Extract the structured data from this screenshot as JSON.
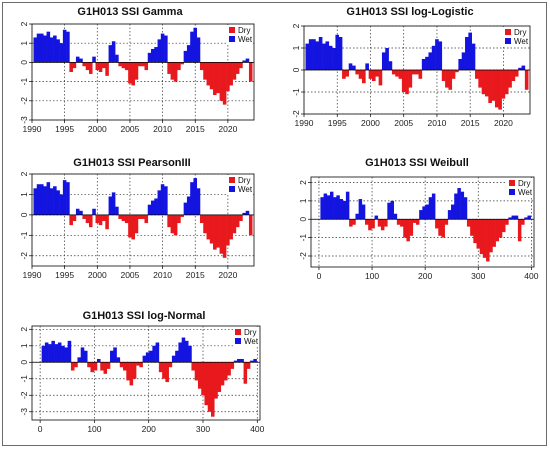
{
  "colors": {
    "dry": "#e8191c",
    "wet": "#1414e0",
    "grid": "#333333",
    "frame": "#222222"
  },
  "legend": {
    "dry": "Dry",
    "wet": "Wet",
    "placement": "top-right"
  },
  "chart_data": [
    {
      "type": "bar",
      "title": "G1H013 SSI Gamma",
      "xlabel": "",
      "ylabel": "",
      "x_kind": "year",
      "xlim": [
        1990,
        2024
      ],
      "xticks": [
        "1990",
        "1995",
        "2000",
        "2005",
        "2010",
        "2015",
        "2020"
      ],
      "ylim": [
        -3,
        2
      ],
      "yticks": [
        "-3",
        "-2",
        "-1",
        "0",
        "1",
        "2"
      ],
      "x": [
        1990.5,
        1991,
        1991.5,
        1992,
        1992.5,
        1993,
        1993.5,
        1994,
        1994.5,
        1995,
        1995.5,
        1996,
        1996.5,
        1997,
        1997.5,
        1998,
        1998.5,
        1999,
        1999.5,
        2000,
        2000.5,
        2001,
        2001.5,
        2002,
        2002.5,
        2003,
        2003.5,
        2004,
        2004.5,
        2005,
        2005.5,
        2006,
        2006.5,
        2007,
        2007.5,
        2008,
        2008.5,
        2009,
        2009.5,
        2010,
        2010.5,
        2011,
        2011.5,
        2012,
        2012.5,
        2013,
        2013.5,
        2014,
        2014.5,
        2015,
        2015.5,
        2016,
        2016.5,
        2017,
        2017.5,
        2018,
        2018.5,
        2019,
        2019.5,
        2020,
        2020.5,
        2021,
        2021.5,
        2022,
        2022.5,
        2023,
        2023.5
      ],
      "values": [
        1.3,
        1.5,
        1.5,
        1.4,
        1.6,
        1.3,
        1.4,
        1.2,
        1.0,
        1.7,
        1.6,
        -0.5,
        -0.3,
        0.3,
        0.2,
        -0.2,
        -0.4,
        -0.6,
        0.3,
        -0.4,
        -0.5,
        -0.3,
        -0.7,
        0.9,
        1.1,
        0.4,
        -0.2,
        -0.3,
        -0.4,
        -1.1,
        -1.2,
        -0.9,
        -0.2,
        -0.2,
        -0.4,
        0.5,
        0.7,
        0.8,
        1.2,
        1.5,
        1.4,
        -0.6,
        -0.9,
        -1.0,
        -0.4,
        -0.1,
        0.6,
        0.9,
        1.6,
        1.8,
        1.3,
        -0.4,
        -0.9,
        -1.2,
        -1.4,
        -1.7,
        -1.6,
        -2.0,
        -2.2,
        -1.5,
        -1.2,
        -0.9,
        -0.6,
        -0.3,
        0.1,
        0.2,
        -1.0
      ]
    },
    {
      "type": "bar",
      "title": "G1H013 SSI log-Logistic",
      "xlabel": "",
      "ylabel": "",
      "x_kind": "year",
      "xlim": [
        1990,
        2024
      ],
      "xticks": [
        "1990",
        "1995",
        "2000",
        "2005",
        "2010",
        "2015",
        "2020"
      ],
      "ylim": [
        -2,
        2
      ],
      "yticks": [
        "-2",
        "-1",
        "0",
        "1",
        "2"
      ],
      "x": [
        1990.5,
        1991,
        1991.5,
        1992,
        1992.5,
        1993,
        1993.5,
        1994,
        1994.5,
        1995,
        1995.5,
        1996,
        1996.5,
        1997,
        1997.5,
        1998,
        1998.5,
        1999,
        1999.5,
        2000,
        2000.5,
        2001,
        2001.5,
        2002,
        2002.5,
        2003,
        2003.5,
        2004,
        2004.5,
        2005,
        2005.5,
        2006,
        2006.5,
        2007,
        2007.5,
        2008,
        2008.5,
        2009,
        2009.5,
        2010,
        2010.5,
        2011,
        2011.5,
        2012,
        2012.5,
        2013,
        2013.5,
        2014,
        2014.5,
        2015,
        2015.5,
        2016,
        2016.5,
        2017,
        2017.5,
        2018,
        2018.5,
        2019,
        2019.5,
        2020,
        2020.5,
        2021,
        2021.5,
        2022,
        2022.5,
        2023,
        2023.5
      ],
      "values": [
        1.2,
        1.4,
        1.4,
        1.3,
        1.5,
        1.2,
        1.3,
        1.1,
        1.0,
        1.6,
        1.5,
        -0.4,
        -0.3,
        0.3,
        0.2,
        -0.2,
        -0.4,
        -0.6,
        0.3,
        -0.4,
        -0.5,
        -0.3,
        -0.7,
        0.8,
        1.0,
        0.4,
        -0.2,
        -0.3,
        -0.4,
        -1.0,
        -1.1,
        -0.8,
        -0.2,
        -0.2,
        -0.4,
        0.5,
        0.6,
        0.8,
        1.1,
        1.4,
        1.3,
        -0.5,
        -0.8,
        -0.9,
        -0.4,
        -0.1,
        0.5,
        0.8,
        1.5,
        1.7,
        1.2,
        -0.4,
        -0.8,
        -1.1,
        -1.2,
        -1.5,
        -1.4,
        -1.7,
        -1.8,
        -1.3,
        -1.1,
        -0.8,
        -0.5,
        -0.3,
        0.1,
        0.2,
        -0.9
      ]
    },
    {
      "type": "bar",
      "title": "G1H013 SSI PearsonIII",
      "xlabel": "",
      "ylabel": "",
      "x_kind": "year",
      "xlim": [
        1990,
        2024
      ],
      "xticks": [
        "1990",
        "1995",
        "2000",
        "2005",
        "2010",
        "2015",
        "2020"
      ],
      "ylim": [
        -2.5,
        2
      ],
      "yticks": [
        "-2",
        "-1",
        "0",
        "1",
        "2"
      ],
      "x": [
        1990.5,
        1991,
        1991.5,
        1992,
        1992.5,
        1993,
        1993.5,
        1994,
        1994.5,
        1995,
        1995.5,
        1996,
        1996.5,
        1997,
        1997.5,
        1998,
        1998.5,
        1999,
        1999.5,
        2000,
        2000.5,
        2001,
        2001.5,
        2002,
        2002.5,
        2003,
        2003.5,
        2004,
        2004.5,
        2005,
        2005.5,
        2006,
        2006.5,
        2007,
        2007.5,
        2008,
        2008.5,
        2009,
        2009.5,
        2010,
        2010.5,
        2011,
        2011.5,
        2012,
        2012.5,
        2013,
        2013.5,
        2014,
        2014.5,
        2015,
        2015.5,
        2016,
        2016.5,
        2017,
        2017.5,
        2018,
        2018.5,
        2019,
        2019.5,
        2020,
        2020.5,
        2021,
        2021.5,
        2022,
        2022.5,
        2023,
        2023.5
      ],
      "values": [
        1.3,
        1.5,
        1.5,
        1.4,
        1.6,
        1.3,
        1.4,
        1.2,
        1.0,
        1.7,
        1.6,
        -0.5,
        -0.3,
        0.3,
        0.2,
        -0.2,
        -0.4,
        -0.6,
        0.3,
        -0.4,
        -0.5,
        -0.3,
        -0.7,
        0.9,
        1.1,
        0.4,
        -0.2,
        -0.3,
        -0.4,
        -1.1,
        -1.2,
        -0.9,
        -0.2,
        -0.2,
        -0.4,
        0.5,
        0.7,
        0.8,
        1.2,
        1.5,
        1.4,
        -0.6,
        -0.9,
        -1.0,
        -0.4,
        -0.1,
        0.6,
        0.9,
        1.6,
        1.8,
        1.3,
        -0.4,
        -0.9,
        -1.2,
        -1.4,
        -1.7,
        -1.6,
        -1.9,
        -2.1,
        -1.5,
        -1.2,
        -0.9,
        -0.6,
        -0.3,
        0.1,
        0.2,
        -1.0
      ]
    },
    {
      "type": "bar",
      "title": "G1H013 SSI Weibull",
      "xlabel": "",
      "ylabel": "",
      "x_kind": "index",
      "xlim": [
        -15,
        405
      ],
      "xticks": [
        "0",
        "100",
        "200",
        "300",
        "400"
      ],
      "ylim": [
        -2.6,
        2.3
      ],
      "yticks": [
        "-2",
        "-1",
        "0",
        "1",
        "2"
      ],
      "x": [
        6,
        12,
        18,
        24,
        30,
        36,
        42,
        48,
        54,
        60,
        66,
        72,
        78,
        84,
        90,
        96,
        102,
        108,
        114,
        120,
        126,
        132,
        138,
        144,
        150,
        156,
        162,
        168,
        174,
        180,
        186,
        192,
        198,
        204,
        210,
        216,
        222,
        228,
        234,
        240,
        246,
        252,
        258,
        264,
        270,
        276,
        282,
        288,
        294,
        300,
        306,
        312,
        318,
        324,
        330,
        336,
        342,
        348,
        354,
        360,
        366,
        372,
        378,
        384,
        390,
        396
      ],
      "values": [
        1.2,
        1.4,
        1.3,
        1.5,
        1.2,
        1.3,
        1.1,
        1.0,
        1.5,
        -0.4,
        -0.3,
        0.3,
        1.1,
        0.8,
        -0.3,
        -0.6,
        -0.5,
        0.2,
        -0.4,
        -0.6,
        -0.4,
        0.9,
        1.0,
        0.3,
        -0.3,
        -0.4,
        -1.0,
        -1.2,
        -0.9,
        -0.2,
        -0.3,
        0.5,
        0.7,
        0.8,
        1.2,
        1.4,
        -0.5,
        -0.9,
        -1.0,
        -0.3,
        0.5,
        0.8,
        1.4,
        1.7,
        1.5,
        1.2,
        -0.4,
        -0.9,
        -1.3,
        -1.6,
        -1.9,
        -2.1,
        -2.3,
        -1.8,
        -1.5,
        -1.2,
        -1.0,
        -0.7,
        -0.3,
        0.1,
        0.2,
        0.2,
        -1.2,
        -0.3,
        0.1,
        0.2
      ]
    },
    {
      "type": "bar",
      "title": "G1H013 SSI log-Normal",
      "xlabel": "",
      "ylabel": "",
      "x_kind": "index",
      "xlim": [
        -15,
        405
      ],
      "xticks": [
        "0",
        "100",
        "200",
        "300",
        "400"
      ],
      "ylim": [
        -3.5,
        2.2
      ],
      "yticks": [
        "-3",
        "-2",
        "-1",
        "0",
        "1",
        "2"
      ],
      "x": [
        6,
        12,
        18,
        24,
        30,
        36,
        42,
        48,
        54,
        60,
        66,
        72,
        78,
        84,
        90,
        96,
        102,
        108,
        114,
        120,
        126,
        132,
        138,
        144,
        150,
        156,
        162,
        168,
        174,
        180,
        186,
        192,
        198,
        204,
        210,
        216,
        222,
        228,
        234,
        240,
        246,
        252,
        258,
        264,
        270,
        276,
        282,
        288,
        294,
        300,
        306,
        312,
        318,
        324,
        330,
        336,
        342,
        348,
        354,
        360,
        366,
        372,
        378,
        384,
        390,
        396
      ],
      "values": [
        1.0,
        1.2,
        1.1,
        1.3,
        1.1,
        1.2,
        1.0,
        0.9,
        1.3,
        -0.5,
        -0.3,
        0.3,
        0.9,
        0.7,
        -0.3,
        -0.6,
        -0.5,
        0.2,
        -0.5,
        -0.7,
        -0.4,
        0.7,
        0.9,
        0.3,
        -0.3,
        -0.5,
        -1.1,
        -1.4,
        -1.0,
        -0.2,
        -0.3,
        0.4,
        0.6,
        0.7,
        1.0,
        1.2,
        -0.6,
        -1.0,
        -1.2,
        -0.3,
        0.4,
        0.7,
        1.2,
        1.5,
        1.3,
        1.0,
        -0.5,
        -1.1,
        -1.6,
        -2.0,
        -2.6,
        -3.0,
        -3.3,
        -2.2,
        -1.8,
        -1.4,
        -1.1,
        -0.8,
        -0.4,
        0.1,
        0.2,
        0.2,
        -1.3,
        -0.4,
        0.1,
        0.2
      ]
    }
  ]
}
